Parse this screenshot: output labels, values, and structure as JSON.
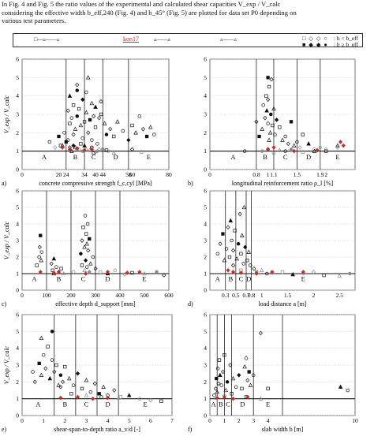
{
  "intro": {
    "line1": "In Fig. 4 and Fig. 5 the ratio values of the experimental and calculated shear capacities V_exp / V_calc",
    "line2": "considering the effective width b_eff,240 (Fig. 4) and b_45° (Fig. 5) are plotted for data set P0 depending on",
    "line3": "various test parameters."
  },
  "legend": {
    "tag": "kon17",
    "row1_symbols": "□ ◇ ◇ ○",
    "row1_text": ": b < b_eff",
    "row2_symbols": "■ ◆ ◆ ●",
    "row2_text": ": b ≥ b_eff"
  },
  "colors": {
    "accent": "#c0302b",
    "dark": "#111111",
    "grey": "#8a8a8a"
  },
  "chart_data": [
    {
      "type": "scatter",
      "panel": "a)",
      "xlabel": "concrete compressive strength f_c,cyl [MPa]",
      "ylabel": "V_exp / V_calc",
      "xlim": [
        0,
        80
      ],
      "ylim": [
        0,
        6
      ],
      "x_ticks": [
        0,
        20,
        40,
        60,
        80
      ],
      "y_ticks": [
        0,
        1,
        2,
        3,
        4,
        5,
        6
      ],
      "boundaries": [
        24,
        34,
        44,
        58
      ],
      "boundary_labels": [
        "24",
        "34",
        "44",
        "58"
      ],
      "regions": [
        "A",
        "B",
        "C",
        "D",
        "E"
      ],
      "reference_line": 1,
      "x": [
        15,
        18,
        20,
        22,
        23,
        25,
        26,
        26,
        27,
        28,
        28,
        29,
        30,
        30,
        31,
        32,
        33,
        33,
        34,
        35,
        35,
        36,
        37,
        38,
        38,
        39,
        40,
        40,
        41,
        42,
        43,
        45,
        46,
        48,
        50,
        52,
        55,
        58,
        60,
        62,
        64,
        66,
        68,
        70,
        72,
        26,
        30,
        34,
        38,
        42,
        21,
        29,
        33,
        40,
        46,
        50,
        25,
        28,
        32,
        35,
        38,
        41,
        24,
        27,
        31,
        37,
        39,
        44,
        47,
        60,
        65,
        36,
        30,
        43
      ],
      "y": [
        1.5,
        1.2,
        1.8,
        1.3,
        2.0,
        3.2,
        2.5,
        4.0,
        2.8,
        1.9,
        3.5,
        2.2,
        2.9,
        4.6,
        3.3,
        2.4,
        1.7,
        3.8,
        2.6,
        3.1,
        4.2,
        2.0,
        2.7,
        3.6,
        1.6,
        2.9,
        2.3,
        3.4,
        1.4,
        2.8,
        3.0,
        2.5,
        1.9,
        2.2,
        1.8,
        2.6,
        2.1,
        1.6,
        2.4,
        2.0,
        2.9,
        2.2,
        1.8,
        2.3,
        1.9,
        1.2,
        1.1,
        1.3,
        1.2,
        1.1,
        1.3,
        1.2,
        1.0,
        0.95,
        1.05,
        0.9,
        1.6,
        1.3,
        1.4,
        1.1,
        1.2,
        1.0,
        1.5,
        1.0,
        1.1,
        1.05,
        0.9,
        1.15,
        1.0,
        1.1,
        0.95,
        5.0,
        4.3,
        3.7
      ],
      "highlight_x": [
        22,
        26,
        30,
        34,
        38
      ],
      "highlight_y": [
        1.2,
        1.1,
        1.15,
        1.05,
        1.1
      ]
    },
    {
      "type": "scatter",
      "panel": "b)",
      "xlabel": "longitudinal reinforcement ratio ρ_l [%]",
      "ylabel": "",
      "xlim": [
        0,
        2.5
      ],
      "ylim": [
        0,
        6
      ],
      "x_ticks": [
        0,
        1,
        2
      ],
      "y_ticks": [
        0,
        1,
        2,
        3,
        4,
        5,
        6
      ],
      "boundaries": [
        0.8,
        1.1,
        1.5,
        1.9
      ],
      "boundary_labels": [
        "0.8",
        "1.1",
        "1.5",
        "1.9"
      ],
      "regions": [
        "A",
        "B",
        "C",
        "D",
        "E"
      ],
      "reference_line": 1,
      "x": [
        0.6,
        0.8,
        0.85,
        0.9,
        0.92,
        0.95,
        0.97,
        0.98,
        1.0,
        1.0,
        1.02,
        1.04,
        1.05,
        1.06,
        1.08,
        1.1,
        1.12,
        1.15,
        1.2,
        1.25,
        1.3,
        1.35,
        1.4,
        1.45,
        1.5,
        1.55,
        1.6,
        1.7,
        1.8,
        1.9,
        2.0,
        2.2,
        0.9,
        1.0,
        1.1,
        1.2,
        1.3,
        1.4,
        1.6,
        1.8,
        2.0,
        2.2,
        1.0,
        1.02
      ],
      "y": [
        1.0,
        2.6,
        1.8,
        2.2,
        3.5,
        2.8,
        4.0,
        3.2,
        2.5,
        3.8,
        4.5,
        2.0,
        3.0,
        4.9,
        2.4,
        3.3,
        1.9,
        2.7,
        2.3,
        1.6,
        1.8,
        1.4,
        2.6,
        1.3,
        1.5,
        1.2,
        1.9,
        1.4,
        1.1,
        1.2,
        1.0,
        1.3,
        1.0,
        1.1,
        0.9,
        1.05,
        1.0,
        1.1,
        0.95,
        1.0,
        1.1,
        1.2,
        5.0,
        1.6
      ],
      "highlight_x": [
        1.0,
        1.1,
        1.45,
        1.85,
        2.25,
        2.3
      ],
      "highlight_y": [
        1.1,
        1.2,
        1.0,
        1.05,
        1.5,
        1.3
      ]
    },
    {
      "type": "scatter",
      "panel": "c)",
      "xlabel": "effective depth d_support [mm]",
      "ylabel": "V_exp / V_calc",
      "xlim": [
        0,
        600
      ],
      "ylim": [
        0,
        6
      ],
      "x_ticks": [
        0,
        100,
        200,
        300,
        400,
        500,
        600
      ],
      "y_ticks": [
        0,
        1,
        2,
        3,
        4,
        5,
        6
      ],
      "boundaries": [
        100,
        200,
        300,
        400
      ],
      "boundary_labels": [],
      "regions": [
        "A",
        "B",
        "C",
        "D",
        "E"
      ],
      "reference_line": 1,
      "x": [
        70,
        72,
        75,
        78,
        80,
        120,
        125,
        130,
        140,
        150,
        160,
        170,
        240,
        245,
        250,
        255,
        258,
        260,
        262,
        265,
        268,
        270,
        275,
        280,
        290,
        300,
        320,
        350,
        380,
        420,
        450,
        500,
        550,
        580,
        245,
        255,
        265,
        275,
        60,
        130,
        210
      ],
      "y": [
        2.0,
        2.6,
        3.3,
        1.8,
        2.3,
        1.6,
        1.2,
        1.9,
        1.4,
        1.1,
        1.3,
        1.0,
        2.2,
        3.0,
        3.8,
        2.6,
        4.5,
        1.8,
        3.4,
        2.8,
        4.0,
        2.4,
        3.1,
        1.6,
        2.0,
        1.3,
        1.1,
        1.0,
        1.2,
        0.95,
        1.05,
        1.0,
        1.1,
        0.9,
        1.5,
        1.2,
        1.4,
        1.1,
        1.5,
        1.0,
        1.1
      ],
      "highlight_x": [
        75,
        130,
        150,
        260,
        350,
        430,
        480
      ],
      "highlight_y": [
        1.1,
        1.05,
        1.1,
        1.0,
        1.1,
        1.05,
        1.1
      ]
    },
    {
      "type": "scatter",
      "panel": "d)",
      "xlabel": "load distance a [m]",
      "ylabel": "",
      "xlim": [
        0,
        2.8
      ],
      "ylim": [
        0,
        6
      ],
      "x_ticks": [
        0.3,
        0.5,
        0.7,
        0.8,
        1,
        1.5,
        2,
        2.5
      ],
      "y_ticks": [
        0,
        1,
        2,
        3,
        4,
        5,
        6
      ],
      "boundaries": [
        0.3,
        0.5,
        0.7,
        0.8
      ],
      "boundary_labels": [
        "0.3",
        "0.5",
        "0.7",
        "0.8"
      ],
      "regions": [
        "A",
        "B",
        "C",
        "D",
        "E"
      ],
      "reference_line": 1,
      "x": [
        0.15,
        0.2,
        0.25,
        0.28,
        0.32,
        0.35,
        0.38,
        0.4,
        0.42,
        0.45,
        0.48,
        0.52,
        0.55,
        0.58,
        0.6,
        0.62,
        0.65,
        0.68,
        0.72,
        0.75,
        0.78,
        0.85,
        0.9,
        1.0,
        1.1,
        1.2,
        1.4,
        1.6,
        1.8,
        2.0,
        2.2,
        2.5,
        2.7,
        0.45,
        0.6,
        0.66
      ],
      "y": [
        2.2,
        2.8,
        3.4,
        1.8,
        2.5,
        3.8,
        2.0,
        4.2,
        3.0,
        2.4,
        3.6,
        1.9,
        2.8,
        4.6,
        2.2,
        3.3,
        1.6,
        2.6,
        1.8,
        2.3,
        1.5,
        1.3,
        1.1,
        1.2,
        1.0,
        1.05,
        1.1,
        0.95,
        1.0,
        1.1,
        0.9,
        0.85,
        1.0,
        1.5,
        1.2,
        5.0
      ],
      "highlight_x": [
        0.35,
        0.45,
        0.6,
        0.9,
        1.2,
        1.8
      ],
      "highlight_y": [
        1.2,
        1.1,
        1.05,
        1.0,
        1.1,
        1.1
      ]
    },
    {
      "type": "scatter",
      "panel": "e)",
      "xlabel": "shear-span-to-depth ratio a_v/d [-]",
      "ylabel": "V_exp / V_calc",
      "xlim": [
        0,
        7
      ],
      "ylim": [
        0,
        6
      ],
      "x_ticks": [
        0,
        1,
        2,
        3,
        4,
        5,
        6,
        7
      ],
      "y_ticks": [
        0,
        1,
        2,
        3,
        4,
        5,
        6
      ],
      "boundaries": [
        1.5,
        2.5,
        3.5,
        4.5
      ],
      "boundary_labels": [],
      "regions": [
        "A",
        "B",
        "C",
        "D",
        "E"
      ],
      "reference_line": 1,
      "x": [
        0.5,
        0.6,
        0.8,
        0.9,
        1.0,
        1.1,
        1.2,
        1.3,
        1.4,
        1.5,
        1.6,
        1.7,
        1.8,
        1.9,
        2.0,
        2.2,
        2.4,
        2.6,
        2.8,
        3.0,
        3.2,
        3.4,
        3.6,
        3.8,
        4.0,
        4.3,
        4.6,
        5.0,
        5.5,
        6.0,
        6.5,
        0.9,
        1.4,
        1.8,
        2.3,
        3.0,
        3.7,
        4.5
      ],
      "y": [
        2.6,
        2.0,
        3.1,
        2.4,
        3.6,
        2.8,
        4.1,
        2.2,
        3.3,
        2.6,
        3.0,
        1.8,
        2.4,
        2.0,
        2.9,
        2.2,
        1.8,
        2.5,
        1.6,
        2.1,
        1.4,
        1.9,
        1.3,
        1.7,
        1.2,
        1.5,
        1.1,
        1.2,
        1.0,
        0.9,
        0.85,
        4.6,
        5.0,
        1.7,
        1.3,
        1.2,
        1.1,
        1.0
      ],
      "highlight_x": [
        1.8,
        2.6,
        3.3,
        4.0
      ],
      "highlight_y": [
        1.05,
        1.1,
        1.0,
        1.05
      ]
    },
    {
      "type": "scatter",
      "panel": "f)",
      "xlabel": "slab width b [m]",
      "ylabel": "",
      "xlim": [
        0,
        10
      ],
      "ylim": [
        0,
        6
      ],
      "x_ticks": [
        0,
        1,
        2,
        3,
        4,
        10
      ],
      "y_ticks": [
        0,
        1,
        2,
        3,
        4,
        5,
        6
      ],
      "boundaries": [
        0.5,
        1.0,
        1.5,
        3.0,
        5.0
      ],
      "boundary_labels": [],
      "regions": [
        "A",
        "B",
        "C",
        "D",
        "E"
      ],
      "reference_line": 1,
      "x": [
        0.3,
        0.4,
        0.45,
        0.5,
        0.55,
        0.6,
        0.65,
        0.7,
        0.8,
        0.9,
        1.0,
        1.1,
        1.2,
        1.4,
        1.5,
        1.6,
        1.8,
        2.0,
        2.2,
        2.4,
        2.5,
        2.6,
        2.7,
        2.8,
        3.0,
        3.5,
        4.0,
        9.0,
        9.5,
        1.0,
        2.5,
        3.5
      ],
      "y": [
        1.2,
        1.6,
        2.2,
        1.4,
        2.8,
        1.9,
        3.3,
        2.4,
        1.8,
        2.6,
        3.6,
        1.5,
        2.0,
        3.0,
        1.3,
        2.2,
        1.7,
        2.4,
        1.6,
        2.9,
        3.4,
        2.1,
        2.6,
        1.8,
        2.4,
        4.9,
        1.6,
        1.7,
        1.5,
        1.2,
        1.1,
        1.0
      ],
      "highlight_x": [
        0.5,
        1.0,
        1.6,
        2.6
      ],
      "highlight_y": [
        1.05,
        1.1,
        1.0,
        1.1
      ]
    }
  ]
}
